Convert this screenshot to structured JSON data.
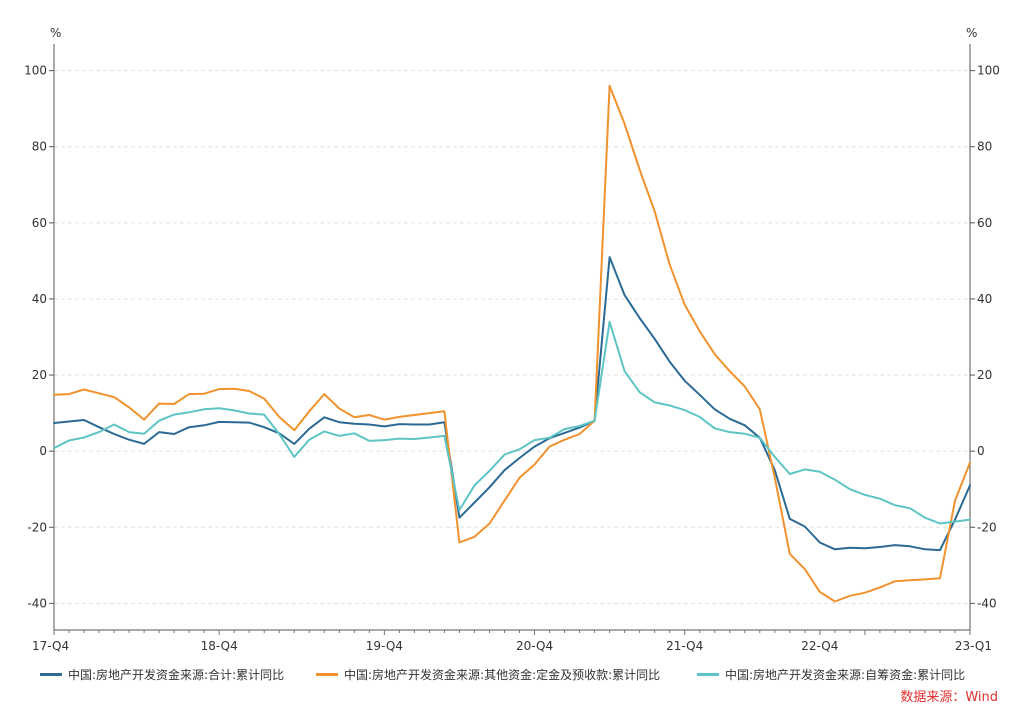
{
  "chart_data": {
    "type": "line",
    "title": "",
    "y_unit_left": "%",
    "y_unit_right": "%",
    "ylim": [
      -47,
      107
    ],
    "y_ticks": [
      -40,
      -20,
      0,
      20,
      40,
      60,
      80,
      100
    ],
    "grid": true,
    "legend_position": "bottom",
    "x_tick_labels": [
      "17-Q4",
      "18-Q4",
      "19-Q4",
      "20-Q4",
      "21-Q4",
      "22-Q4",
      "23-Q1"
    ],
    "x_tick_index": [
      0,
      11,
      22,
      32,
      42,
      51,
      54
    ],
    "series": [
      {
        "name": "中国:房地产开发资金来源:合计:累计同比",
        "color": "#2b6a93",
        "values": [
          7.4,
          7.8,
          8.2,
          6.3,
          4.5,
          3.0,
          1.9,
          5.0,
          4.5,
          6.3,
          6.8,
          7.7,
          7.6,
          7.5,
          6.3,
          4.7,
          1.9,
          5.9,
          8.9,
          7.6,
          7.2,
          7.0,
          6.5,
          7.1,
          7.0,
          7.0,
          7.6,
          -17.5,
          -13.5,
          -9.5,
          -5.0,
          -1.8,
          1.2,
          3.4,
          4.8,
          6.2,
          8.0,
          51.0,
          41.0,
          35.0,
          29.5,
          23.5,
          18.5,
          14.8,
          11.0,
          8.5,
          6.8,
          3.5,
          -5.0,
          -17.8,
          -19.8,
          -24.0,
          -25.8,
          -25.4,
          -25.5,
          -25.2,
          -24.7,
          -25.0,
          -25.8,
          -26.0,
          -18.0,
          -9.0
        ]
      },
      {
        "name": "中国:房地产开发资金来源:其他资金:定金及预收款:累计同比",
        "color": "#f0922e",
        "values": [
          14.8,
          15.0,
          16.2,
          15.2,
          14.2,
          11.5,
          8.3,
          12.5,
          12.4,
          15.0,
          15.1,
          16.3,
          16.4,
          15.8,
          13.8,
          9.0,
          5.5,
          10.5,
          15.0,
          11.2,
          8.9,
          9.5,
          8.3,
          9.0,
          9.5,
          10.0,
          10.5,
          -24.0,
          -22.5,
          -19.0,
          -13.0,
          -7.0,
          -3.5,
          1.2,
          3.0,
          4.5,
          8.0,
          96.0,
          86.0,
          74.0,
          63.0,
          49.0,
          38.5,
          31.5,
          25.5,
          21.0,
          17.0,
          11.0,
          -7.0,
          -27.0,
          -31.0,
          -37.0,
          -39.5,
          -38.0,
          -37.2,
          -35.8,
          -34.2,
          -33.9,
          -33.7,
          -33.4,
          -13.0,
          -3.0
        ]
      },
      {
        "name": "中国:房地产开发资金来源:自筹资金:累计同比",
        "color": "#5ec4c4",
        "values": [
          0.8,
          2.8,
          3.6,
          5.0,
          7.0,
          5.0,
          4.6,
          8.0,
          9.6,
          10.2,
          11.0,
          11.3,
          10.7,
          9.9,
          9.6,
          4.5,
          -1.5,
          3.0,
          5.2,
          4.0,
          4.7,
          2.7,
          2.9,
          3.3,
          3.2,
          3.6,
          4.0,
          -15.5,
          -9.0,
          -5.2,
          -0.9,
          0.5,
          2.9,
          3.5,
          5.8,
          6.6,
          8.0,
          34.0,
          21.0,
          15.5,
          12.8,
          12.0,
          10.8,
          9.0,
          6.0,
          5.0,
          4.6,
          3.5,
          -1.5,
          -6.0,
          -4.8,
          -5.4,
          -7.5,
          -10.0,
          -11.5,
          -12.5,
          -14.2,
          -15.0,
          -17.5,
          -19.0,
          -18.5,
          -18.0
        ]
      }
    ]
  },
  "source_text": "数据来源：Wind"
}
